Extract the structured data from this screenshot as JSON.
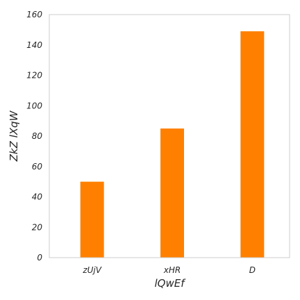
{
  "chart_data": {
    "type": "bar",
    "title": "",
    "xlabel": "lQwEf",
    "ylabel": "ZkZ lXqW",
    "categories": [
      "zUjV",
      "xHR",
      "D"
    ],
    "values": [
      50,
      85,
      149
    ],
    "ylim": [
      0,
      160
    ],
    "yticks": [
      "0",
      "20",
      "40",
      "60",
      "80",
      "100",
      "120",
      "140",
      "160"
    ],
    "grid": false,
    "bar_color": "#ff8000",
    "frame_color": "#cccccc"
  }
}
